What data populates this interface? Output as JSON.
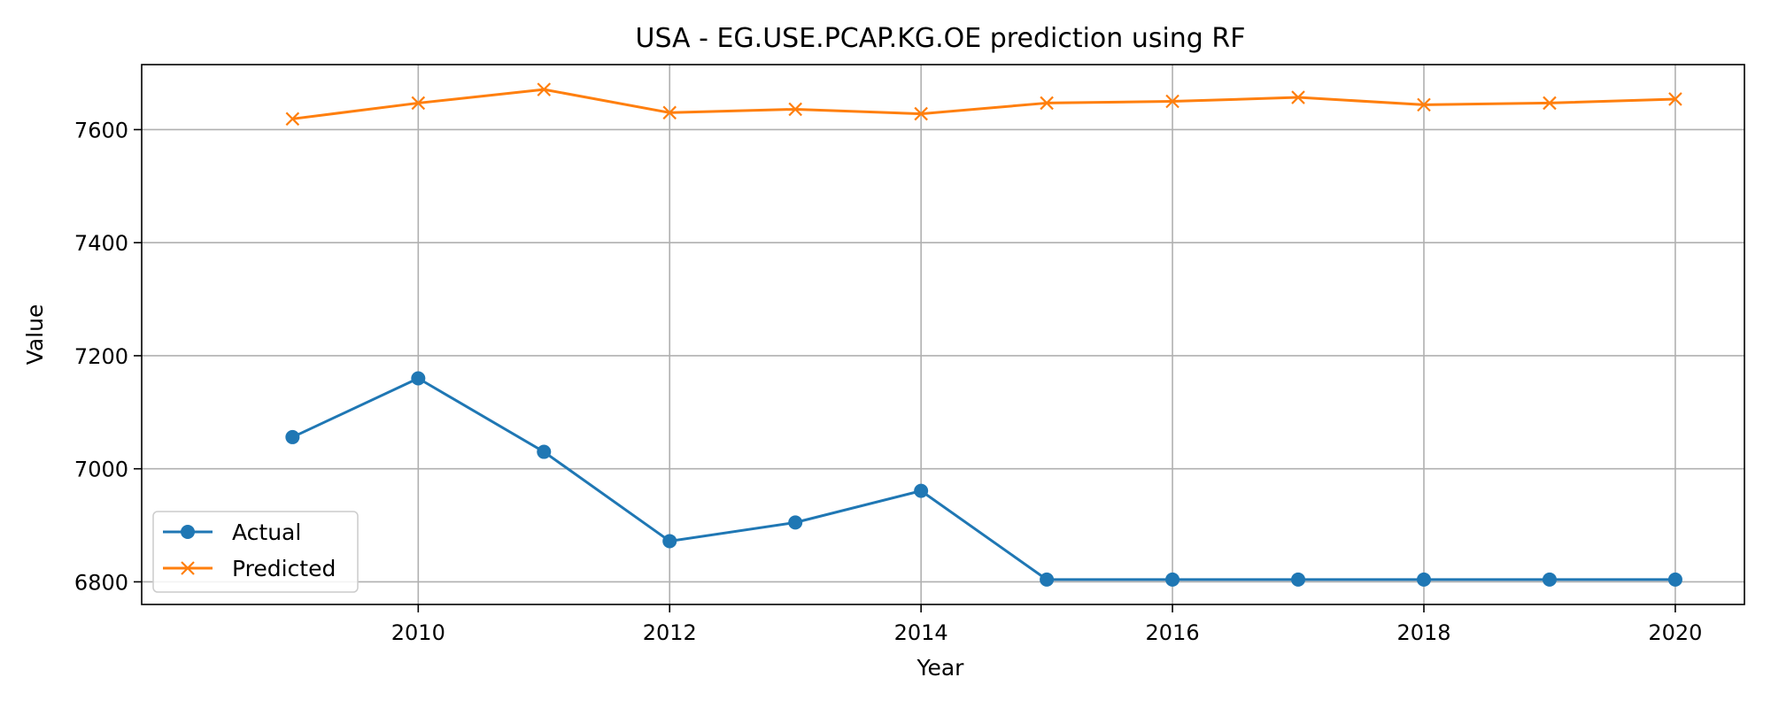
{
  "chart_data": {
    "type": "line",
    "title": "USA - EG.USE.PCAP.KG.OE prediction using RF",
    "xlabel": "Year",
    "ylabel": "Value",
    "x": [
      2009,
      2010,
      2011,
      2012,
      2013,
      2014,
      2015,
      2016,
      2017,
      2018,
      2019,
      2020
    ],
    "xlim": [
      2007.8,
      2020.55
    ],
    "ylim": [
      6760,
      7715
    ],
    "xticks": [
      2010,
      2012,
      2014,
      2016,
      2018,
      2020
    ],
    "yticks": [
      6800,
      7000,
      7200,
      7400,
      7600
    ],
    "grid": true,
    "legend_position": "lower-left",
    "series": [
      {
        "name": "Actual",
        "color": "#1f77b4",
        "marker": "circle",
        "values": [
          7056,
          7160,
          7030,
          6872,
          6905,
          6961,
          6804,
          6804,
          6804,
          6804,
          6804,
          6804
        ]
      },
      {
        "name": "Predicted",
        "color": "#ff7f0e",
        "marker": "x",
        "values": [
          7619,
          7647,
          7671,
          7630,
          7636,
          7628,
          7647,
          7650,
          7657,
          7644,
          7647,
          7654
        ]
      }
    ]
  }
}
